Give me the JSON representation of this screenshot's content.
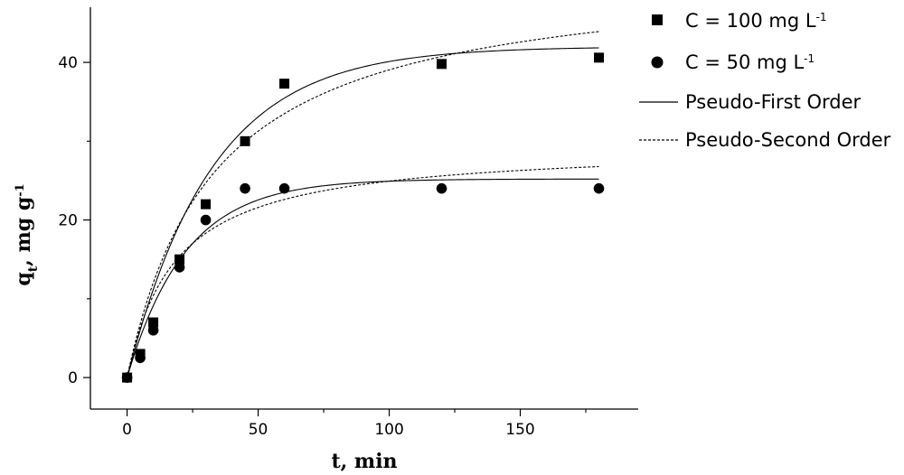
{
  "chart_data": {
    "type": "scatter",
    "xlabel": "t, min",
    "ylabel_main": "q",
    "ylabel_sub": "t",
    "ylabel_rest": ", mg g",
    "ylabel_sup": "-1",
    "xlim": [
      -14,
      195
    ],
    "ylim": [
      -4,
      47
    ],
    "xticks": [
      0,
      50,
      100,
      150
    ],
    "yticks": [
      0,
      20,
      40
    ],
    "x_minor_ticks": [
      25,
      75,
      125,
      175
    ],
    "y_minor_ticks": [
      10,
      30
    ],
    "series": [
      {
        "name_main": "C = 100 mg L",
        "name_sup": "-1",
        "marker": "square",
        "x": [
          0,
          5,
          10,
          20,
          30,
          45,
          60,
          120,
          180
        ],
        "y": [
          0,
          3,
          7,
          15,
          22,
          30,
          37.3,
          39.8,
          40.6
        ]
      },
      {
        "name_main": "C = 50 mg L",
        "name_sup": "-1",
        "marker": "circle",
        "x": [
          0,
          5,
          10,
          20,
          30,
          45,
          60,
          120,
          180
        ],
        "y": [
          0,
          2.5,
          6,
          14,
          20,
          24,
          24,
          24,
          24
        ]
      }
    ],
    "fits": [
      {
        "name": "Pseudo-First Order",
        "style": "solid",
        "curves": [
          {
            "model": "first",
            "qe": 42.0,
            "k": 0.031
          },
          {
            "model": "first",
            "qe": 25.2,
            "k": 0.045
          }
        ]
      },
      {
        "name": "Pseudo-Second Order",
        "style": "dashed",
        "curves": [
          {
            "model": "second",
            "qe": 52.0,
            "k": 0.00058
          },
          {
            "model": "second",
            "qe": 29.5,
            "k": 0.00185
          }
        ]
      }
    ],
    "colors": {
      "ink": "#000000",
      "background": "#ffffff"
    }
  }
}
